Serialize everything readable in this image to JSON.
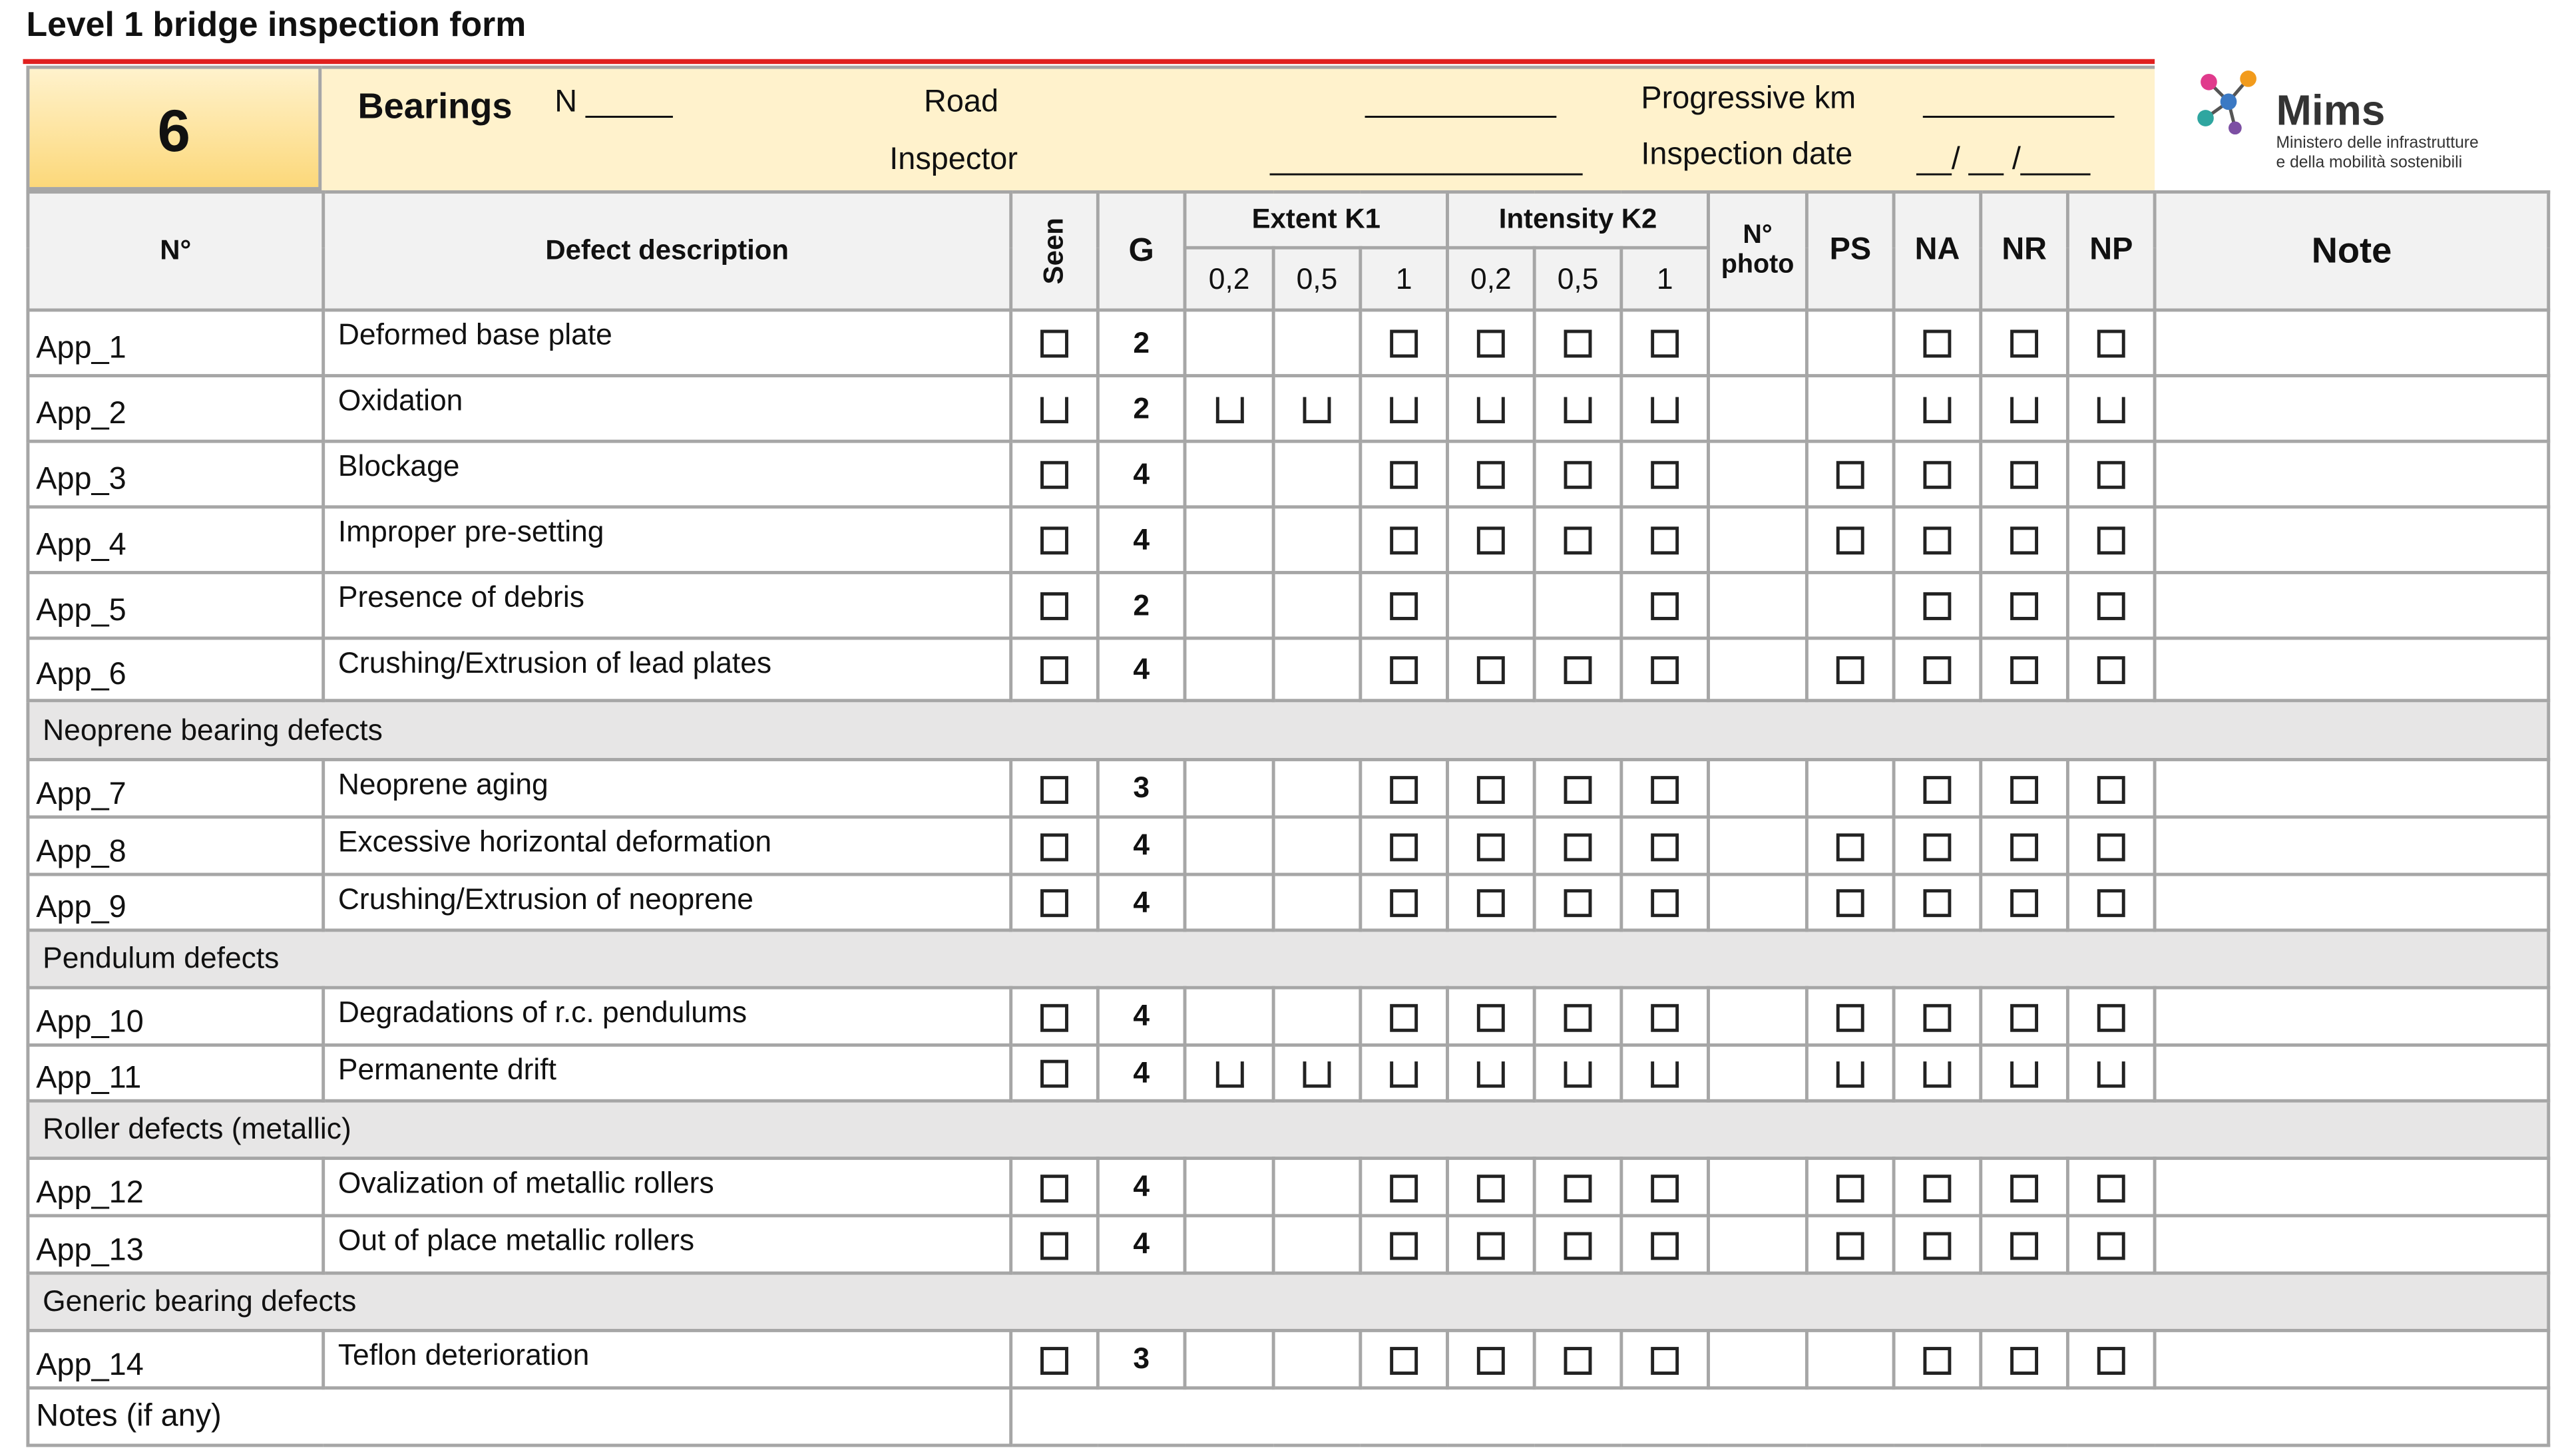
{
  "title": "Level 1 bridge inspection form",
  "header": {
    "number": 6,
    "section": "Bearings",
    "n_field": "N _____",
    "road": "Road",
    "road_blank": "___________",
    "progressive_km": "Progressive km",
    "progressive_km_blank": "___________",
    "inspector": "Inspector",
    "inspector_blank": "__________________",
    "inspection_date": "Inspection date",
    "date_blank": "__/ __ /____"
  },
  "logo": {
    "name": "Mims",
    "line1": "Ministero delle infrastrutture",
    "line2": "e della mobilità sostenibili"
  },
  "columns": {
    "number": "N°",
    "description": "Defect description",
    "seen": "Seen",
    "g": "G",
    "extent": "Extent K1",
    "extent_levels": [
      "0,2",
      "0,5",
      "1"
    ],
    "intensity": "Intensity K2",
    "intensity_levels": [
      "0,2",
      "0,5",
      "1"
    ],
    "photo": "N° photo",
    "ps": "PS",
    "na": "NA",
    "nr": "NR",
    "np": "NP",
    "note": "Note"
  },
  "table": {
    "rows": [
      {
        "id": "App_1",
        "description": "Deformed base plate",
        "g": 2
      },
      {
        "id": "App_2",
        "description": "Oxidation",
        "g": 2
      },
      {
        "id": "App_3",
        "description": "Blockage",
        "g": 4
      },
      {
        "id": "App_4",
        "description": "Improper pre-setting",
        "g": 4
      },
      {
        "id": "App_5",
        "description": "Presence of debris",
        "g": 2
      },
      {
        "id": "App_6",
        "description": "Crushing/Extrusion of lead plates",
        "g": 4
      },
      {
        "group": "Neoprene bearing defects"
      },
      {
        "id": "App_7",
        "description": "Neoprene aging",
        "g": 3
      },
      {
        "id": "App_8",
        "description": "Excessive horizontal deformation",
        "g": 4
      },
      {
        "id": "App_9",
        "description": "Crushing/Extrusion of neoprene",
        "g": 4
      },
      {
        "group": "Pendulum defects"
      },
      {
        "id": "App_10",
        "description": "Degradations  of r.c. pendulums",
        "g": 4
      },
      {
        "id": "App_11",
        "description": "Permanente drift",
        "g": 4
      },
      {
        "group": "Roller defects (metallic)"
      },
      {
        "id": "App_12",
        "description": "Ovalization of metallic rollers",
        "g": 4
      },
      {
        "id": "App_13",
        "description": "Out of place metallic rollers",
        "g": 4
      },
      {
        "group": "Generic bearing defects"
      },
      {
        "id": "App_14",
        "description": "Teflon deterioration",
        "g": 3
      }
    ],
    "notes": "Notes (if any)"
  }
}
